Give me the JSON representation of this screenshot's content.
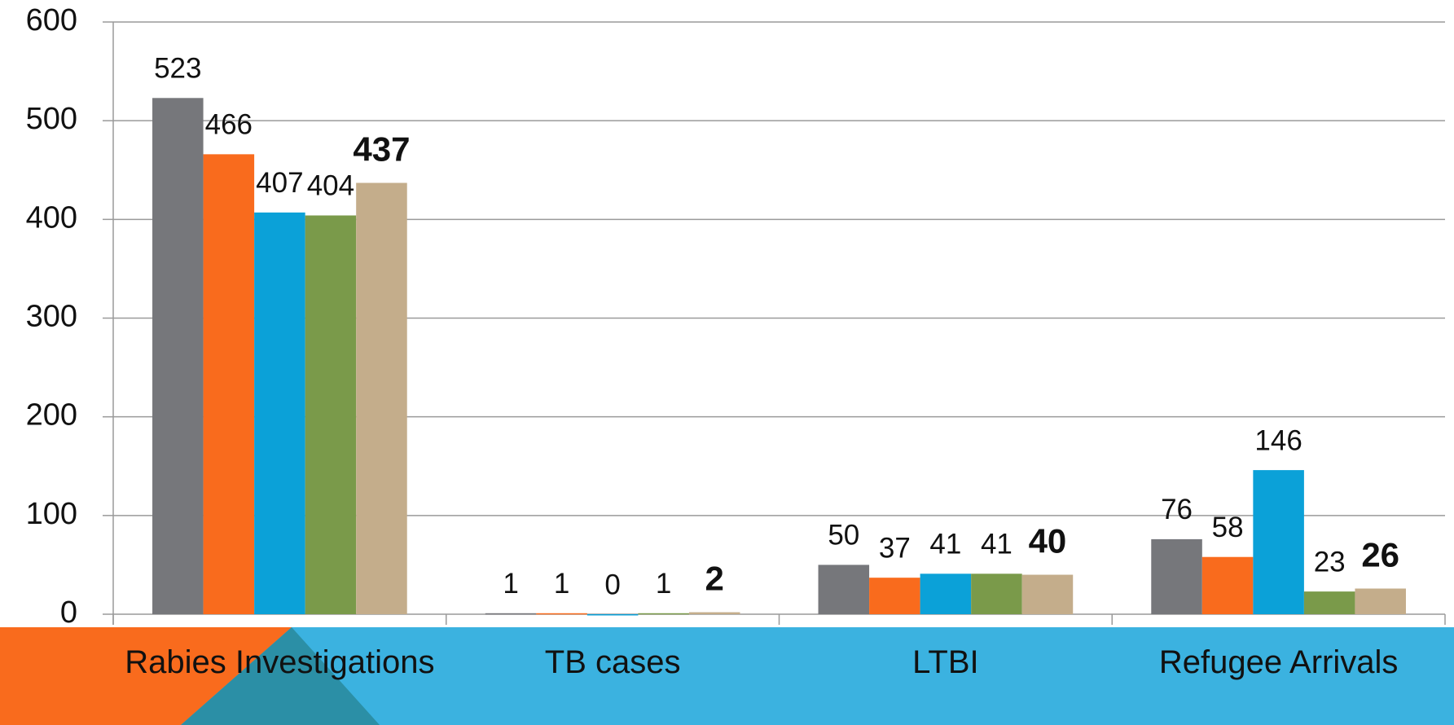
{
  "chart_data": {
    "type": "bar",
    "categories": [
      "Rabies Investigations",
      "TB cases",
      "LTBI",
      "Refugee Arrivals"
    ],
    "series": [
      {
        "color": "#76777b",
        "values": [
          523,
          1,
          50,
          76
        ]
      },
      {
        "color": "#f96b1d",
        "values": [
          466,
          1,
          37,
          58
        ]
      },
      {
        "color": "#0ba1d8",
        "values": [
          407,
          0,
          41,
          146
        ]
      },
      {
        "color": "#7a9a4a",
        "values": [
          404,
          1,
          41,
          23
        ]
      },
      {
        "color": "#c4ad8b",
        "values": [
          437,
          2,
          40,
          26
        ]
      }
    ],
    "ylim": [
      0,
      600
    ],
    "yticks": [
      0,
      100,
      200,
      300,
      400,
      500,
      600
    ],
    "grid": true
  }
}
